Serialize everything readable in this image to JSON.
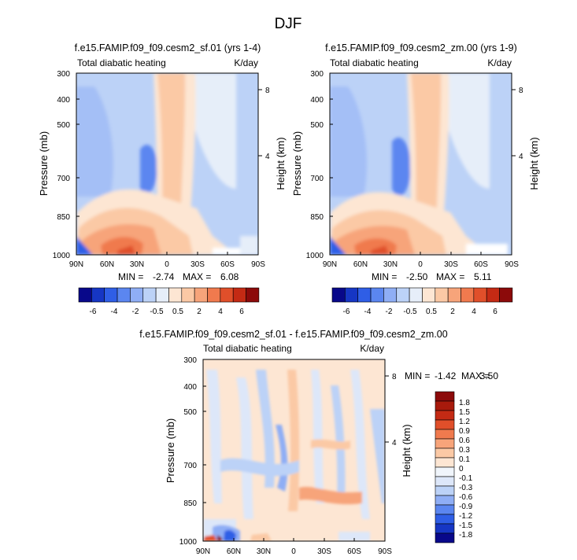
{
  "figure": {
    "title": "DJF"
  },
  "colors": {
    "scale_13": [
      "#08088a",
      "#1636c4",
      "#2f5ee6",
      "#5b86f0",
      "#8faef5",
      "#bcd2f7",
      "#e6eef9",
      "#fde6d3",
      "#fbc9a5",
      "#f7a47a",
      "#f07a4e",
      "#e04f2a",
      "#c42a14",
      "#8c0a0a"
    ],
    "scale_15": [
      "#08088a",
      "#1636c4",
      "#2f5ee6",
      "#5b86f0",
      "#8faef5",
      "#bcd2f7",
      "#dde7f9",
      "#f0f5fb",
      "#fde6d3",
      "#fbc9a5",
      "#f7a47a",
      "#f07a4e",
      "#e04f2a",
      "#c42a14",
      "#a81a0c",
      "#8c0a0a"
    ]
  },
  "chart_data": [
    {
      "type": "contour",
      "title": "f.e15.FAMIP.f09_f09.cesm2_sf.01 (yrs 1-4)",
      "subtitle_left": "Total diabatic heating",
      "subtitle_right": "K/day",
      "ylabel": "Pressure (mb)",
      "ylabel_right": "Height (km)",
      "x_ticks": [
        "90N",
        "60N",
        "30N",
        "0",
        "30S",
        "60S",
        "90S"
      ],
      "y_ticks": [
        "300",
        "400",
        "500",
        "700",
        "850",
        "1000"
      ],
      "y_right_ticks": [
        "8",
        "4"
      ],
      "xlim": [
        90,
        -90
      ],
      "ylim": [
        1000,
        300
      ],
      "min_label": "MIN =",
      "min_value": "-2.74",
      "max_label": "MAX =",
      "max_value": "6.08",
      "levels": [
        "-6",
        "-4",
        "-2",
        "-0.5",
        "0.5",
        "2",
        "4",
        "6"
      ],
      "level_step": 1
    },
    {
      "type": "contour",
      "title": "f.e15.FAMIP.f09_f09.cesm2_zm.00 (yrs 1-9)",
      "subtitle_left": "Total diabatic heating",
      "subtitle_right": "K/day",
      "ylabel": "Pressure (mb)",
      "ylabel_right": "Height (km)",
      "x_ticks": [
        "90N",
        "60N",
        "30N",
        "0",
        "30S",
        "60S",
        "90S"
      ],
      "y_ticks": [
        "300",
        "400",
        "500",
        "700",
        "850",
        "1000"
      ],
      "y_right_ticks": [
        "8",
        "4"
      ],
      "xlim": [
        90,
        -90
      ],
      "ylim": [
        1000,
        300
      ],
      "min_label": "MIN =",
      "min_value": "-2.50",
      "max_label": "MAX =",
      "max_value": "5.11",
      "levels": [
        "-6",
        "-4",
        "-2",
        "-0.5",
        "0.5",
        "2",
        "4",
        "6"
      ],
      "level_step": 1
    },
    {
      "type": "contour",
      "title": "f.e15.FAMIP.f09_f09.cesm2_sf.01 - f.e15.FAMIP.f09_f09.cesm2_zm.00",
      "subtitle_left": "Total diabatic heating",
      "subtitle_right": "K/day",
      "ylabel": "Pressure (mb)",
      "ylabel_right": "Height (km)",
      "x_ticks": [
        "90N",
        "60N",
        "30N",
        "0",
        "30S",
        "60S",
        "90S"
      ],
      "y_ticks": [
        "300",
        "400",
        "500",
        "700",
        "850",
        "1000"
      ],
      "y_right_ticks": [
        "8",
        "4"
      ],
      "xlim": [
        90,
        -90
      ],
      "ylim": [
        1000,
        300
      ],
      "min_label": "MIN =",
      "min_value": "-1.42",
      "max_label": "MAX =",
      "max_value": "3.50",
      "levels": [
        "1.8",
        "1.5",
        "1.2",
        "0.9",
        "0.6",
        "0.3",
        "0.1",
        "0",
        "-0.1",
        "-0.3",
        "-0.6",
        "-0.9",
        "-1.2",
        "-1.5",
        "-1.8"
      ]
    }
  ]
}
